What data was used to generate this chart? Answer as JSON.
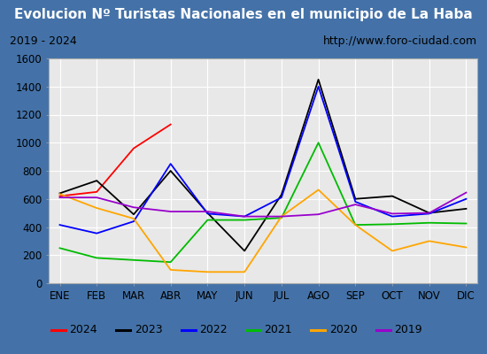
{
  "title": "Evolucion Nº Turistas Nacionales en el municipio de La Haba",
  "subtitle_left": "2019 - 2024",
  "subtitle_right": "http://www.foro-ciudad.com",
  "months": [
    "ENE",
    "FEB",
    "MAR",
    "ABR",
    "MAY",
    "JUN",
    "JUL",
    "AGO",
    "SEP",
    "OCT",
    "NOV",
    "DIC"
  ],
  "series": {
    "2024": [
      620,
      650,
      960,
      1130,
      null,
      null,
      null,
      null,
      null,
      null,
      null,
      null
    ],
    "2023": [
      640,
      730,
      490,
      800,
      500,
      230,
      630,
      1450,
      600,
      620,
      500,
      530
    ],
    "2022": [
      415,
      355,
      440,
      850,
      495,
      475,
      610,
      1400,
      580,
      475,
      495,
      600
    ],
    "2021": [
      250,
      180,
      165,
      150,
      450,
      450,
      465,
      1000,
      415,
      420,
      430,
      425
    ],
    "2020": [
      635,
      535,
      460,
      95,
      80,
      80,
      475,
      665,
      415,
      230,
      300,
      255
    ],
    "2019": [
      610,
      610,
      540,
      510,
      510,
      475,
      475,
      490,
      560,
      495,
      500,
      645
    ]
  },
  "colors": {
    "2024": "#ff0000",
    "2023": "#000000",
    "2022": "#0000ff",
    "2021": "#00bb00",
    "2020": "#ffa500",
    "2019": "#9900cc"
  },
  "ylim": [
    0,
    1600
  ],
  "yticks": [
    0,
    200,
    400,
    600,
    800,
    1000,
    1200,
    1400,
    1600
  ],
  "title_bg": "#4a7abf",
  "title_color": "#ffffff",
  "plot_bg": "#e8e8e8",
  "grid_color": "#ffffff",
  "border_color": "#4472a8",
  "title_fontsize": 11,
  "axis_fontsize": 8.5,
  "legend_fontsize": 9
}
